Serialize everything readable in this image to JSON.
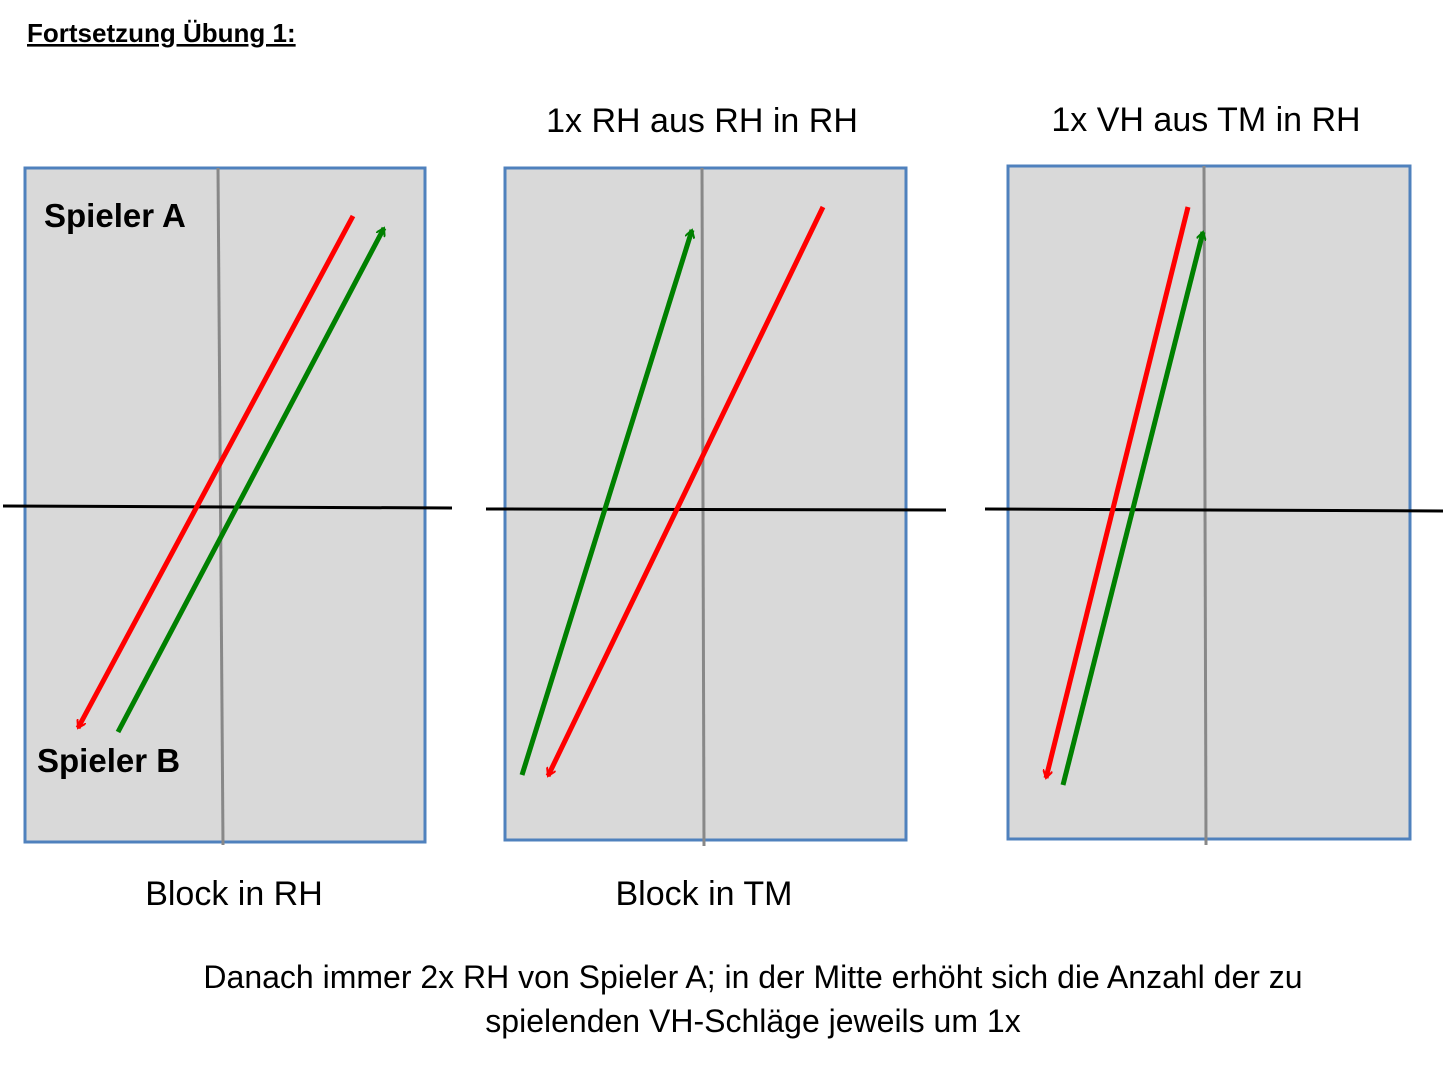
{
  "header": {
    "title": "Fortsetzung Übung 1:"
  },
  "tables": [
    {
      "top_label": null,
      "labels": [
        "Spieler A",
        "Spieler B"
      ],
      "bottom_label": "Block in RH"
    },
    {
      "top_label": "1x RH aus RH in RH",
      "labels": [],
      "bottom_label": "Block in TM"
    },
    {
      "top_label": "1x VH aus TM in RH",
      "labels": [],
      "bottom_label": null
    }
  ],
  "footer": {
    "lines": [
      "Danach immer 2x RH von Spieler A; in der Mitte erhöht sich die Anzahl der zu",
      "spielenden VH-Schläge jeweils um 1x"
    ]
  }
}
